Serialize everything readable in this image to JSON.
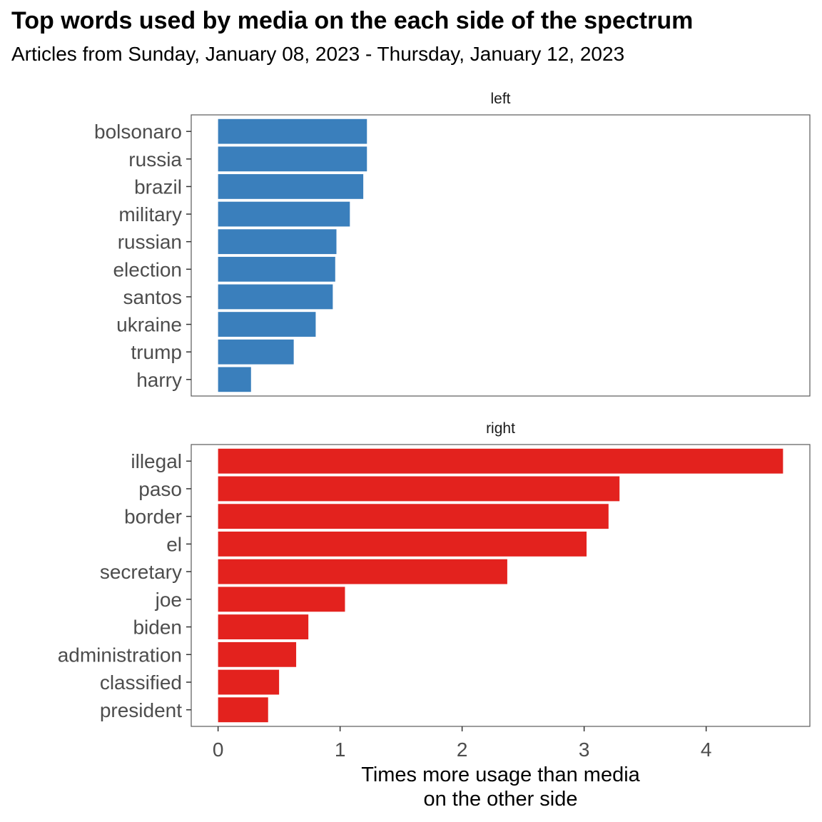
{
  "title": "Top words used by media on the each side of the spectrum",
  "subtitle": "Articles from Sunday, January 08, 2023 - Thursday, January 12, 2023",
  "chart_data": {
    "type": "bar",
    "orientation": "horizontal",
    "facets": [
      {
        "name": "left",
        "color": "#3a7fbc",
        "categories": [
          "bolsonaro",
          "russia",
          "brazil",
          "military",
          "russian",
          "election",
          "santos",
          "ukraine",
          "trump",
          "harry"
        ],
        "values": [
          1.22,
          1.22,
          1.19,
          1.08,
          0.97,
          0.96,
          0.94,
          0.8,
          0.62,
          0.27
        ]
      },
      {
        "name": "right",
        "color": "#e3221e",
        "categories": [
          "illegal",
          "paso",
          "border",
          "el",
          "secretary",
          "joe",
          "biden",
          "administration",
          "classified",
          "president"
        ],
        "values": [
          4.63,
          3.29,
          3.2,
          3.02,
          2.37,
          1.04,
          0.74,
          0.64,
          0.5,
          0.41
        ]
      }
    ],
    "x_ticks": [
      "0",
      "1",
      "2",
      "3",
      "4"
    ],
    "xlabel": "Times more usage than media on the other side",
    "xlabel_lines": [
      "Times more usage than media",
      "on the other side"
    ],
    "xlim": [
      -0.22,
      4.85
    ],
    "grid": false,
    "shared_x_axis": true
  }
}
